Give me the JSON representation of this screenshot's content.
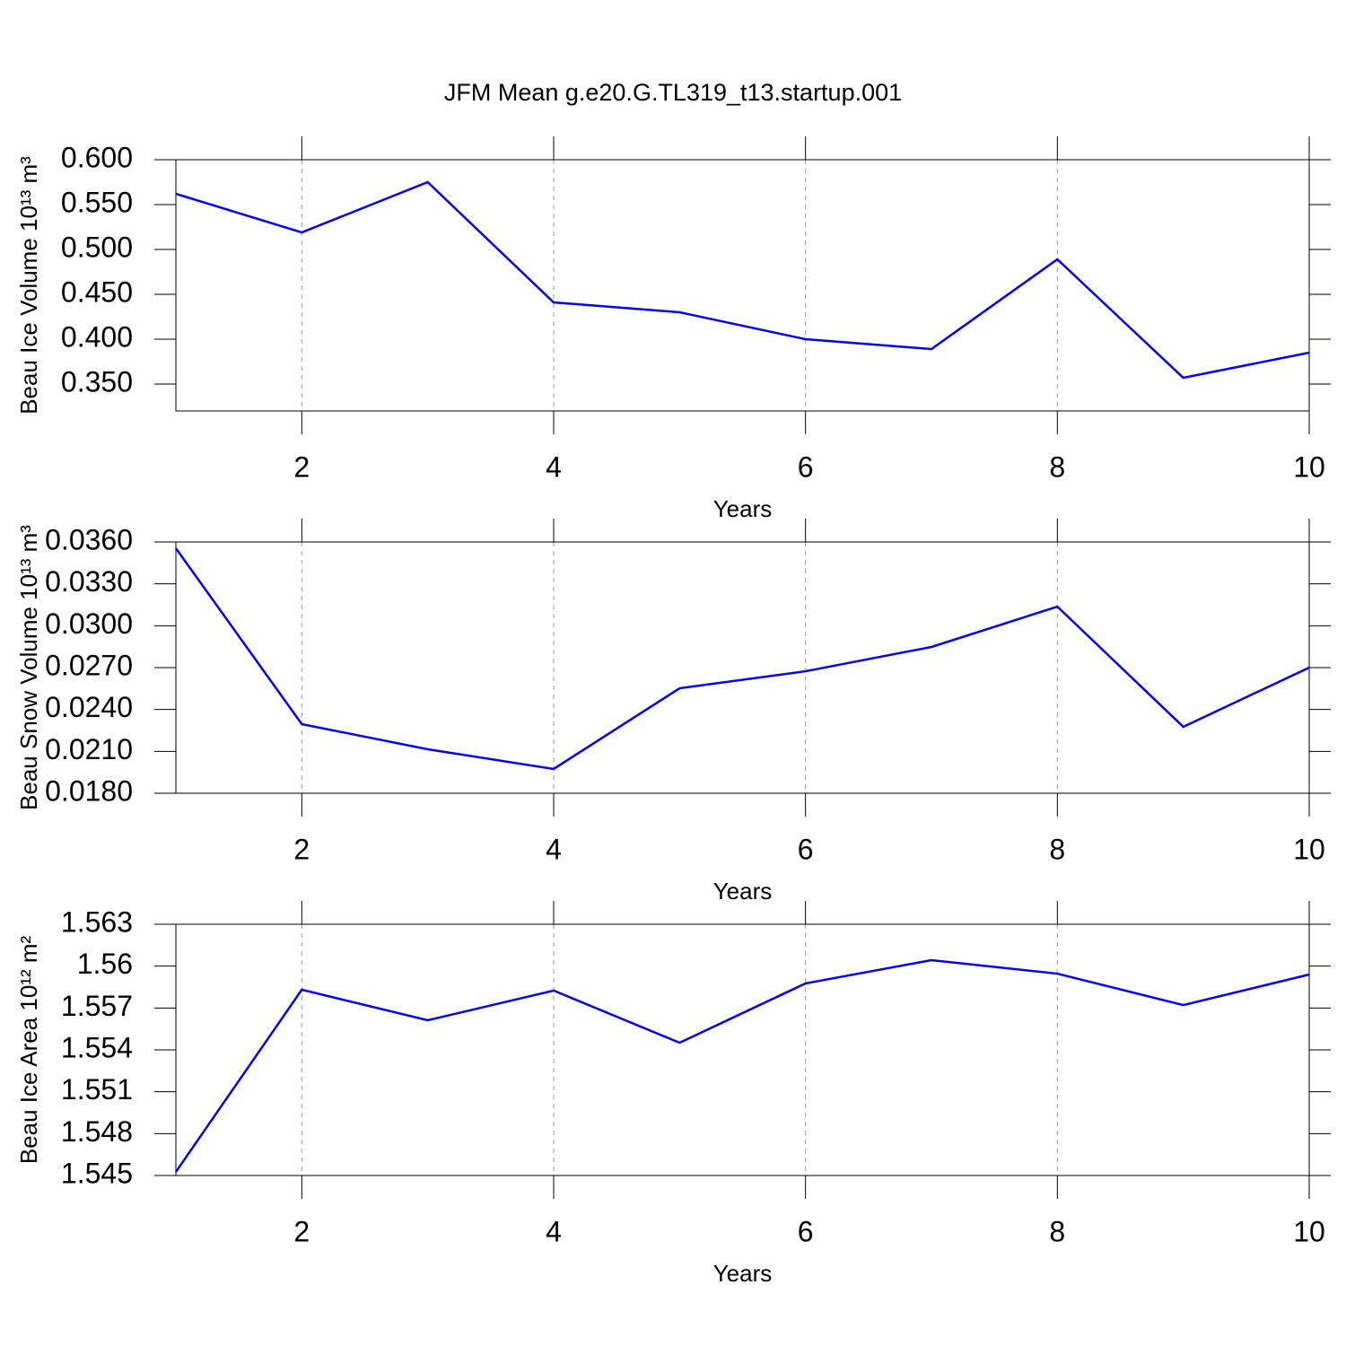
{
  "title": "JFM Mean g.e20.G.TL319_t13.startup.001",
  "chart_data": [
    {
      "type": "line",
      "ylabel": "Beau Ice Volume 10¹³ m³",
      "xlabel": "Years",
      "color": "#0000ff",
      "xgrid": true,
      "x": [
        1,
        2,
        3,
        4,
        5,
        6,
        7,
        8,
        9,
        10
      ],
      "values": [
        0.562,
        0.519,
        0.575,
        0.441,
        0.43,
        0.4,
        0.389,
        0.489,
        0.357,
        0.385
      ],
      "xlim": [
        1,
        10
      ],
      "xticks": [
        2,
        4,
        6,
        8,
        10
      ],
      "ylim": [
        0.32,
        0.6
      ],
      "yticks": [
        {
          "value": 0.35,
          "label": "0.350"
        },
        {
          "value": 0.4,
          "label": "0.400"
        },
        {
          "value": 0.45,
          "label": "0.450"
        },
        {
          "value": 0.5,
          "label": "0.500"
        },
        {
          "value": 0.55,
          "label": "0.550"
        },
        {
          "value": 0.6,
          "label": "0.600"
        }
      ]
    },
    {
      "type": "line",
      "ylabel": "Beau Snow Volume 10¹³ m³",
      "xlabel": "Years",
      "color": "#0000ff",
      "xgrid": true,
      "x": [
        1,
        2,
        3,
        4,
        5,
        6,
        7,
        8,
        9,
        10
      ],
      "values": [
        0.03555,
        0.02295,
        0.02115,
        0.01974,
        0.02552,
        0.02674,
        0.02848,
        0.03137,
        0.02276,
        0.027
      ],
      "xlim": [
        1,
        10
      ],
      "xticks": [
        2,
        4,
        6,
        8,
        10
      ],
      "ylim": [
        0.018,
        0.036
      ],
      "yticks": [
        {
          "value": 0.018,
          "label": "0.0180"
        },
        {
          "value": 0.021,
          "label": "0.0210"
        },
        {
          "value": 0.024,
          "label": "0.0240"
        },
        {
          "value": 0.027,
          "label": "0.0270"
        },
        {
          "value": 0.03,
          "label": "0.0300"
        },
        {
          "value": 0.033,
          "label": "0.0330"
        },
        {
          "value": 0.036,
          "label": "0.0360"
        }
      ]
    },
    {
      "type": "line",
      "ylabel": "Beau Ice Area 10¹² m²",
      "xlabel": "Years",
      "color": "#0000ff",
      "xgrid": true,
      "x": [
        1,
        2,
        3,
        4,
        5,
        6,
        7,
        8,
        9,
        10
      ],
      "values": [
        1.54526,
        1.55831,
        1.55612,
        1.55825,
        1.55451,
        1.55876,
        1.56043,
        1.55946,
        1.55721,
        1.5594
      ],
      "xlim": [
        1,
        10
      ],
      "xticks": [
        2,
        4,
        6,
        8,
        10
      ],
      "ylim": [
        1.545,
        1.563
      ],
      "yticks": [
        1.545,
        1.548,
        1.551,
        1.554,
        1.557,
        1.56,
        1.563
      ]
    }
  ]
}
